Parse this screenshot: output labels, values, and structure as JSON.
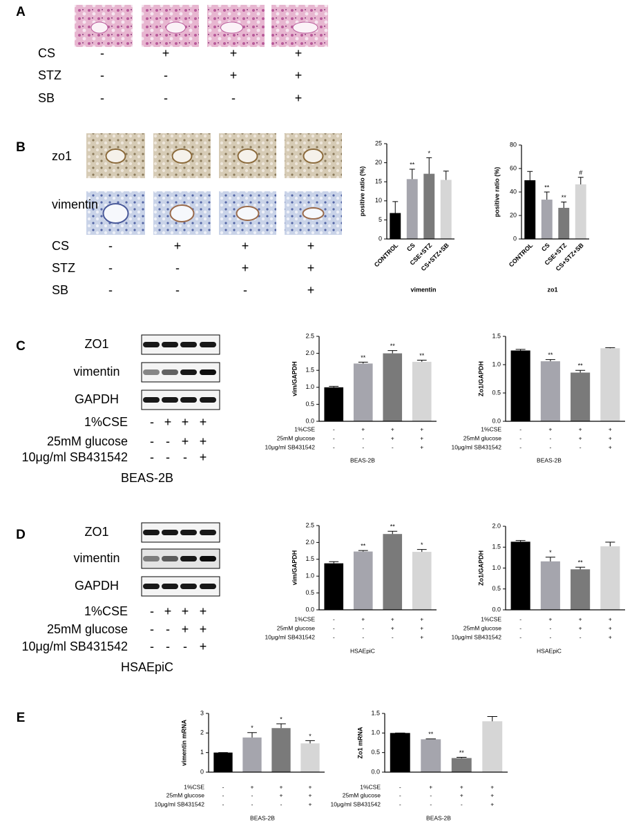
{
  "figure": {
    "panel_labels": [
      "A",
      "B",
      "C",
      "D",
      "E"
    ],
    "a": {
      "rows": [
        {
          "name": "CS",
          "signs": [
            "-",
            "+",
            "+",
            "+"
          ]
        },
        {
          "name": "STZ",
          "signs": [
            "-",
            "-",
            "+",
            "+"
          ]
        },
        {
          "name": "SB",
          "signs": [
            "-",
            "-",
            "-",
            "+"
          ]
        }
      ]
    },
    "b": {
      "stains": [
        "zo1",
        "vimentin"
      ],
      "rows": [
        {
          "name": "CS",
          "signs": [
            "-",
            "+",
            "+",
            "+"
          ]
        },
        {
          "name": "STZ",
          "signs": [
            "-",
            "-",
            "+",
            "+"
          ]
        },
        {
          "name": "SB",
          "signs": [
            "-",
            "-",
            "-",
            "+"
          ]
        }
      ]
    },
    "c": {
      "blots": [
        "ZO1",
        "vimentin",
        "GAPDH"
      ],
      "rows": [
        {
          "name": "1%CSE",
          "signs": [
            "-",
            "+",
            "+",
            "+"
          ]
        },
        {
          "name": "25mM glucose",
          "signs": [
            "-",
            "-",
            "+",
            "+"
          ]
        },
        {
          "name": "10μg/ml SB431542",
          "signs": [
            "-",
            "-",
            "-",
            "+"
          ]
        }
      ],
      "cell_line": "BEAS-2B"
    },
    "d": {
      "blots": [
        "ZO1",
        "vimentin",
        "GAPDH"
      ],
      "rows": [
        {
          "name": "1%CSE",
          "signs": [
            "-",
            "+",
            "+",
            "+"
          ]
        },
        {
          "name": "25mM glucose",
          "signs": [
            "-",
            "-",
            "+",
            "+"
          ]
        },
        {
          "name": "10μg/ml SB431542",
          "signs": [
            "-",
            "-",
            "-",
            "+"
          ]
        }
      ],
      "cell_line": "HSAEpiC"
    }
  },
  "chart_data": [
    {
      "type": "bar",
      "ylabel": "positive ratio (%)",
      "xlabel": "vimentin",
      "categories": [
        "CONTROL",
        "CS",
        "CSE+STZ",
        "CS+STZ+SB"
      ],
      "values": [
        6.8,
        15.7,
        17.1,
        15.5
      ],
      "errors": [
        3.0,
        2.6,
        4.2,
        2.3
      ],
      "annotations": [
        null,
        "**",
        "*",
        null
      ],
      "colors": [
        "#000000",
        "#a5a5ad",
        "#7a7a7a",
        "#d6d6d6"
      ],
      "ylim": [
        0,
        25
      ],
      "yticks": [
        0,
        5,
        10,
        15,
        20,
        25
      ]
    },
    {
      "type": "bar",
      "ylabel": "positive ratio (%)",
      "xlabel": "zo1",
      "categories": [
        "CONTROL",
        "CS",
        "CSE+STZ",
        "CS+STZ+SB"
      ],
      "values": [
        50,
        33.5,
        26.5,
        46.5
      ],
      "errors": [
        7.5,
        6.5,
        5,
        6
      ],
      "annotations": [
        null,
        "**",
        "**",
        "#"
      ],
      "colors": [
        "#000000",
        "#a5a5ad",
        "#7a7a7a",
        "#d6d6d6"
      ],
      "ylim": [
        0,
        80
      ],
      "yticks": [
        0,
        20,
        40,
        60,
        80
      ]
    },
    {
      "type": "bar",
      "ylabel": "vim/GAPDH",
      "xlabel": "BEAS-2B",
      "conditions": [
        {
          "name": "1%CSE",
          "signs": [
            "-",
            "+",
            "+",
            "+"
          ]
        },
        {
          "name": "25mM glucose",
          "signs": [
            "-",
            "-",
            "+",
            "+"
          ]
        },
        {
          "name": "10μg/ml SB431542",
          "signs": [
            "-",
            "-",
            "-",
            "+"
          ]
        }
      ],
      "values": [
        1.0,
        1.7,
        2.0,
        1.75
      ],
      "errors": [
        0.03,
        0.04,
        0.08,
        0.05
      ],
      "annotations": [
        null,
        "**",
        "**",
        "**"
      ],
      "colors": [
        "#000000",
        "#a5a5ad",
        "#7a7a7a",
        "#d6d6d6"
      ],
      "ylim": [
        0,
        2.5
      ],
      "yticks": [
        {
          "value": 0,
          "label": "0.0"
        },
        0.5,
        {
          "value": 1,
          "label": "1.0"
        },
        1.5,
        {
          "value": 2,
          "label": "2.0"
        },
        2.5
      ]
    },
    {
      "type": "bar",
      "ylabel": "Zo1/GAPDH",
      "xlabel": "BEAS-2B",
      "conditions": [
        {
          "name": "1%CSE",
          "signs": [
            "-",
            "+",
            "+",
            "+"
          ]
        },
        {
          "name": "25mM glucose",
          "signs": [
            "-",
            "-",
            "+",
            "+"
          ]
        },
        {
          "name": "10μg/ml SB431542",
          "signs": [
            "-",
            "-",
            "-",
            "+"
          ]
        }
      ],
      "values": [
        1.25,
        1.06,
        0.86,
        1.29
      ],
      "errors": [
        0.02,
        0.03,
        0.04,
        0.01
      ],
      "annotations": [
        null,
        "**",
        "**",
        null
      ],
      "colors": [
        "#000000",
        "#a5a5ad",
        "#7a7a7a",
        "#d6d6d6"
      ],
      "ylim": [
        0,
        1.5
      ],
      "yticks": [
        {
          "value": 0,
          "label": "0.0"
        },
        0.5,
        {
          "value": 1,
          "label": "1.0"
        },
        1.5
      ]
    },
    {
      "type": "bar",
      "ylabel": "vim/GAPDH",
      "xlabel": "HSAEpiC",
      "conditions": [
        {
          "name": "1%CSE",
          "signs": [
            "-",
            "+",
            "+",
            "+"
          ]
        },
        {
          "name": "25mM glucose",
          "signs": [
            "-",
            "-",
            "+",
            "+"
          ]
        },
        {
          "name": "10μg/ml SB431542",
          "signs": [
            "-",
            "-",
            "-",
            "+"
          ]
        }
      ],
      "values": [
        1.38,
        1.73,
        2.25,
        1.72
      ],
      "errors": [
        0.05,
        0.03,
        0.08,
        0.07
      ],
      "annotations": [
        null,
        "**",
        "**",
        "*"
      ],
      "colors": [
        "#000000",
        "#a5a5ad",
        "#7a7a7a",
        "#d6d6d6"
      ],
      "ylim": [
        0,
        2.5
      ],
      "yticks": [
        {
          "value": 0,
          "label": "0.0"
        },
        0.5,
        {
          "value": 1,
          "label": "1.0"
        },
        1.5,
        {
          "value": 2,
          "label": "2.0"
        },
        2.5
      ]
    },
    {
      "type": "bar",
      "ylabel": "Zo1/GAPDH",
      "xlabel": "HSAEpiC",
      "conditions": [
        {
          "name": "1%CSE",
          "signs": [
            "-",
            "+",
            "+",
            "+"
          ]
        },
        {
          "name": "25mM glucose",
          "signs": [
            "-",
            "-",
            "+",
            "+"
          ]
        },
        {
          "name": "10μg/ml SB431542",
          "signs": [
            "-",
            "-",
            "-",
            "+"
          ]
        }
      ],
      "values": [
        1.63,
        1.16,
        0.97,
        1.52
      ],
      "errors": [
        0.03,
        0.1,
        0.05,
        0.1
      ],
      "annotations": [
        null,
        "*",
        "**",
        null
      ],
      "colors": [
        "#000000",
        "#a5a5ad",
        "#7a7a7a",
        "#d6d6d6"
      ],
      "ylim": [
        0,
        2
      ],
      "yticks": [
        {
          "value": 0,
          "label": "0.0"
        },
        0.5,
        {
          "value": 1,
          "label": "1.0"
        },
        1.5,
        {
          "value": 2,
          "label": "2.0"
        }
      ]
    },
    {
      "type": "bar",
      "ylabel": "vimentin mRNA",
      "xlabel": "BEAS-2B",
      "conditions": [
        {
          "name": "1%CSE",
          "signs": [
            "-",
            "+",
            "+",
            "+"
          ]
        },
        {
          "name": "25mM glucose",
          "signs": [
            "-",
            "-",
            "+",
            "+"
          ]
        },
        {
          "name": "10μg/ml SB431542",
          "signs": [
            "-",
            "-",
            "-",
            "+"
          ]
        }
      ],
      "values": [
        1.0,
        1.77,
        2.25,
        1.47
      ],
      "errors": [
        0,
        0.25,
        0.22,
        0.14
      ],
      "annotations": [
        null,
        "*",
        "*",
        "*"
      ],
      "colors": [
        "#000000",
        "#a5a5ad",
        "#7a7a7a",
        "#d6d6d6"
      ],
      "ylim": [
        0,
        3
      ],
      "yticks": [
        0,
        1,
        2,
        3
      ]
    },
    {
      "type": "bar",
      "ylabel": "Zo1 mRNA",
      "xlabel": "BEAS-2B",
      "conditions": [
        {
          "name": "1%CSE",
          "signs": [
            "-",
            "+",
            "+",
            "+"
          ]
        },
        {
          "name": "25mM glucose",
          "signs": [
            "-",
            "-",
            "+",
            "+"
          ]
        },
        {
          "name": "10μg/ml SB431542",
          "signs": [
            "-",
            "-",
            "-",
            "+"
          ]
        }
      ],
      "values": [
        1.0,
        0.84,
        0.36,
        1.3
      ],
      "errors": [
        0,
        0.01,
        0.02,
        0.12
      ],
      "annotations": [
        null,
        "**",
        "**",
        null
      ],
      "colors": [
        "#000000",
        "#a5a5ad",
        "#7a7a7a",
        "#d6d6d6"
      ],
      "ylim": [
        0,
        1.5
      ],
      "yticks": [
        {
          "value": 0,
          "label": "0.0"
        },
        0.5,
        {
          "value": 1,
          "label": "1.0"
        },
        1.5
      ]
    }
  ]
}
